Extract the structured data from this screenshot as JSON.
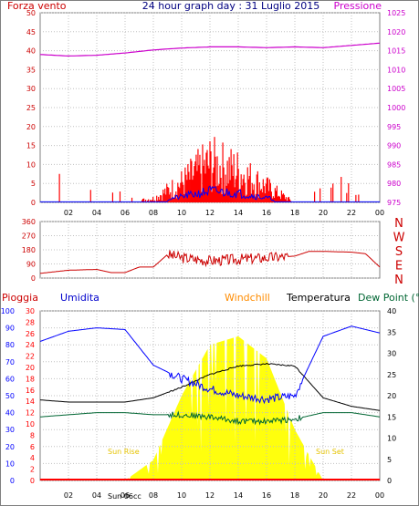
{
  "header": {
    "left_title": "Forza vento",
    "center_title": "24 hour graph day : 31 Luglio 2015",
    "right_title": "Pressione"
  },
  "colors": {
    "wind": "#ff0000",
    "gust": "#0000ff",
    "pressure": "#cc00cc",
    "direction": "#cc0000",
    "rain": "#ff0000",
    "humidity": "#0000ff",
    "windchill": "#ff8c00",
    "temperature": "#000000",
    "dewpoint": "#006633",
    "solar": "#ffff00",
    "sun_text": "#e6c300",
    "grid": "#c0c0c0",
    "axis_left_primary": "#cc0000",
    "axis_right_pressure": "#cc00cc"
  },
  "time_ticks": [
    "02",
    "04",
    "06",
    "08",
    "10",
    "12",
    "14",
    "16",
    "18",
    "20",
    "22",
    "00"
  ],
  "panel_direction": {
    "compass_labels": [
      "N",
      "W",
      "S",
      "E",
      "N"
    ],
    "y_ticks": [
      "360",
      "270",
      "180",
      "90",
      "0"
    ]
  },
  "panel_temp": {
    "legend": {
      "rain": "Pioggia",
      "humidity": "Umidita",
      "windchill": "Windchill",
      "temperature": "Temperatura",
      "dewpoint": "Dew Point (°C"
    },
    "sun_rise_label": "Sun Rise",
    "sun_set_label": "Sun Set",
    "sun_hour_label": "Sun 06cc"
  },
  "chart_data": [
    {
      "type": "line",
      "title": "Forza vento / Pressione",
      "x": [
        0,
        2,
        4,
        6,
        8,
        10,
        12,
        14,
        16,
        18,
        20,
        22,
        24
      ],
      "series": [
        {
          "name": "Forza vento",
          "axis": "left",
          "values": [
            0,
            0,
            0,
            0,
            1,
            5,
            10,
            8,
            4,
            0,
            0,
            0,
            0
          ]
        },
        {
          "name": "Pressione",
          "axis": "right",
          "values": [
            1014,
            1013.6,
            1013.8,
            1014.4,
            1015.2,
            1015.7,
            1016,
            1016,
            1015.8,
            1016,
            1015.8,
            1016.4,
            1017
          ]
        }
      ],
      "ylim_left": [
        0,
        50
      ],
      "ylim_right": [
        975,
        1025
      ],
      "y_ticks_left": [
        0,
        5,
        10,
        15,
        20,
        25,
        30,
        35,
        40,
        45,
        50
      ],
      "y_ticks_right": [
        975,
        980,
        985,
        990,
        995,
        1000,
        1005,
        1010,
        1015,
        1020,
        1025
      ],
      "grid": true
    },
    {
      "type": "line",
      "title": "",
      "x": [
        0,
        2,
        4,
        5,
        6,
        7,
        8,
        9,
        10,
        12,
        14,
        16,
        18,
        19,
        20,
        22,
        23,
        24
      ],
      "series": [
        {
          "name": "",
          "values": [
            30,
            50,
            55,
            35,
            35,
            70,
            70,
            150,
            130,
            110,
            120,
            130,
            140,
            170,
            170,
            165,
            155,
            70
          ]
        }
      ],
      "ylim": [
        0,
        360
      ],
      "grid": true
    },
    {
      "type": "line",
      "title": "",
      "x": [
        0,
        2,
        4,
        6,
        8,
        10,
        12,
        14,
        16,
        18,
        20,
        22,
        24
      ],
      "series": [
        {
          "name": "Pioggia",
          "axis": "rain",
          "values": [
            0,
            0,
            0,
            0,
            0,
            0,
            0,
            0,
            0,
            0,
            0,
            0,
            0
          ]
        },
        {
          "name": "Umidita",
          "axis": "humidity",
          "values": [
            82,
            88,
            90,
            89,
            68,
            60,
            54,
            50,
            48,
            50,
            85,
            91,
            87
          ]
        },
        {
          "name": "Temperatura",
          "axis": "temp",
          "values": [
            19,
            18.5,
            18.5,
            18.5,
            19.5,
            22,
            25,
            27,
            27.5,
            27,
            19.5,
            17.5,
            16.5
          ]
        },
        {
          "name": "Dew Point",
          "axis": "temp",
          "values": [
            15,
            15.5,
            16,
            16,
            15.5,
            15.5,
            15,
            14,
            14,
            14.5,
            16,
            16,
            15
          ]
        },
        {
          "name": "Solar",
          "axis": "solar",
          "values": [
            0,
            0,
            0,
            0,
            120,
            500,
            800,
            850,
            720,
            300,
            0,
            0,
            0
          ]
        }
      ],
      "ylim_humidity": [
        0,
        100
      ],
      "ylim_rain": [
        0,
        30
      ],
      "ylim_temp": [
        0,
        40
      ],
      "y_ticks_humidity": [
        0,
        10,
        20,
        30,
        40,
        50,
        60,
        70,
        80,
        90,
        100
      ],
      "y_ticks_rain": [
        0,
        2,
        4,
        6,
        8,
        10,
        12,
        14,
        16,
        18,
        20,
        22,
        24,
        26,
        28,
        30
      ],
      "y_ticks_temp": [
        0,
        5,
        10,
        15,
        20,
        25,
        30,
        35,
        40
      ],
      "grid": true
    }
  ]
}
